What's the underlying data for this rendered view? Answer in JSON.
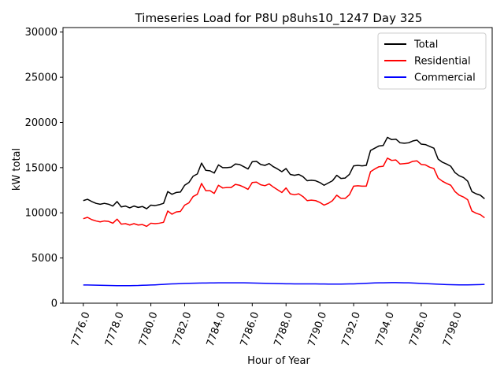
{
  "chart_data": {
    "type": "line",
    "title": "Timeseries Load for P8U p8uhs10_1247  Day 325",
    "xlabel": "Hour of Year",
    "ylabel": "kW total",
    "xlim": [
      7774.8,
      7800.2
    ],
    "ylim": [
      0,
      30500
    ],
    "x_ticks": [
      7776,
      7778,
      7780,
      7782,
      7784,
      7786,
      7788,
      7790,
      7792,
      7794,
      7796,
      7798
    ],
    "x_tick_labels": [
      "7776.0",
      "7778.0",
      "7780.0",
      "7782.0",
      "7784.0",
      "7786.0",
      "7788.0",
      "7790.0",
      "7792.0",
      "7794.0",
      "7796.0",
      "7798.0"
    ],
    "y_ticks": [
      0,
      5000,
      10000,
      15000,
      20000,
      25000,
      30000
    ],
    "y_tick_labels": [
      "0",
      "5000",
      "10000",
      "15000",
      "20000",
      "25000",
      "30000"
    ],
    "legend_position": "top-right",
    "x_start": 7776,
    "x_step": 0.25,
    "series": [
      {
        "name": "Total",
        "color": "#000000",
        "values": [
          11350,
          11500,
          11250,
          11050,
          10950,
          11050,
          10950,
          10750,
          11250,
          10650,
          10750,
          10550,
          10750,
          10600,
          10700,
          10450,
          10850,
          10800,
          10900,
          11050,
          12350,
          12050,
          12250,
          12300,
          13050,
          13350,
          14050,
          14300,
          15500,
          14700,
          14650,
          14400,
          15300,
          15000,
          15000,
          15050,
          15400,
          15350,
          15100,
          14850,
          15650,
          15700,
          15350,
          15250,
          15450,
          15100,
          14850,
          14550,
          14900,
          14250,
          14150,
          14250,
          14000,
          13550,
          13600,
          13550,
          13350,
          13050,
          13300,
          13550,
          14150,
          13800,
          13850,
          14250,
          15200,
          15250,
          15200,
          15250,
          16900,
          17150,
          17400,
          17450,
          18350,
          18100,
          18150,
          17750,
          17700,
          17750,
          17950,
          18050,
          17600,
          17550,
          17350,
          17150,
          15950,
          15600,
          15400,
          15150,
          14450,
          14100,
          13900,
          13500,
          12350,
          12100,
          11950,
          11550
        ]
      },
      {
        "name": "Residential",
        "color": "#ff0000",
        "values": [
          9350,
          9500,
          9250,
          9100,
          9000,
          9100,
          9050,
          8850,
          9300,
          8750,
          8800,
          8650,
          8800,
          8650,
          8700,
          8500,
          8850,
          8800,
          8850,
          8950,
          10200,
          9850,
          10100,
          10150,
          10850,
          11100,
          11800,
          12050,
          13250,
          12450,
          12450,
          12150,
          13050,
          12750,
          12800,
          12800,
          13150,
          13050,
          12850,
          12600,
          13350,
          13400,
          13100,
          13000,
          13200,
          12850,
          12550,
          12250,
          12750,
          12100,
          12000,
          12100,
          11800,
          11350,
          11400,
          11350,
          11150,
          10850,
          11050,
          11350,
          11950,
          11600,
          11600,
          12000,
          12950,
          13000,
          12950,
          12950,
          14550,
          14850,
          15100,
          15150,
          16050,
          15800,
          15850,
          15400,
          15450,
          15500,
          15700,
          15750,
          15350,
          15300,
          15050,
          14900,
          13850,
          13500,
          13250,
          13050,
          12350,
          11950,
          11750,
          11450,
          10200,
          9950,
          9800,
          9450
        ]
      },
      {
        "name": "Commercial",
        "color": "#0000ff",
        "values": [
          2020,
          2010,
          2000,
          1990,
          1980,
          1970,
          1960,
          1950,
          1940,
          1940,
          1940,
          1940,
          1950,
          1960,
          1980,
          1990,
          2010,
          2030,
          2060,
          2080,
          2110,
          2130,
          2150,
          2170,
          2190,
          2200,
          2210,
          2220,
          2230,
          2230,
          2240,
          2240,
          2250,
          2250,
          2260,
          2260,
          2260,
          2260,
          2250,
          2240,
          2230,
          2220,
          2210,
          2200,
          2190,
          2180,
          2170,
          2160,
          2150,
          2150,
          2140,
          2140,
          2140,
          2130,
          2130,
          2130,
          2120,
          2120,
          2110,
          2110,
          2110,
          2110,
          2120,
          2130,
          2140,
          2160,
          2180,
          2200,
          2220,
          2240,
          2250,
          2260,
          2270,
          2280,
          2280,
          2270,
          2260,
          2250,
          2230,
          2210,
          2190,
          2170,
          2150,
          2120,
          2100,
          2080,
          2060,
          2050,
          2040,
          2030,
          2030,
          2030,
          2040,
          2050,
          2060,
          2080
        ]
      }
    ]
  }
}
